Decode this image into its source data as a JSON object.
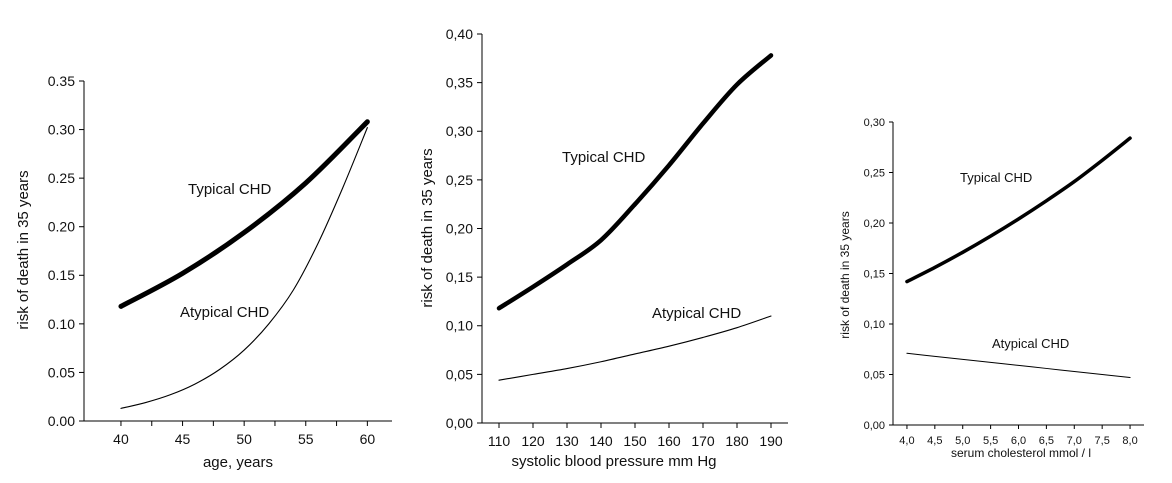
{
  "chart_data": [
    {
      "type": "line",
      "xlabel": "age, years",
      "ylabel": "risk of death in 35 years",
      "xlim": [
        37,
        62
      ],
      "ylim": [
        0,
        0.35
      ],
      "x_ticks": [
        "40",
        "45",
        "50",
        "55",
        "60"
      ],
      "y_ticks": [
        "0.00",
        "0.05",
        "0.10",
        "0.15",
        "0.20",
        "0.25",
        "0.30",
        "0.35"
      ],
      "series": [
        {
          "name": "Typical CHD",
          "x": [
            40,
            45,
            50,
            55,
            60
          ],
          "y": [
            0.118,
            0.152,
            0.194,
            0.245,
            0.308
          ]
        },
        {
          "name": "Atypical CHD",
          "x": [
            40,
            42,
            44,
            46,
            48,
            50,
            52,
            54,
            56,
            58,
            60
          ],
          "y": [
            0.013,
            0.019,
            0.027,
            0.038,
            0.053,
            0.073,
            0.1,
            0.135,
            0.183,
            0.24,
            0.302
          ]
        }
      ],
      "colors": {
        "typical": "#000000",
        "atypical": "#000000"
      }
    },
    {
      "type": "line",
      "xlabel": "systolic blood pressure mm Hg",
      "ylabel": "risk of death in 35 years",
      "xlim": [
        105,
        195
      ],
      "ylim": [
        0,
        0.4
      ],
      "x_ticks": [
        "110",
        "120",
        "130",
        "140",
        "150",
        "160",
        "170",
        "180",
        "190"
      ],
      "y_ticks": [
        "0,00",
        "0,05",
        "0,10",
        "0,15",
        "0,20",
        "0,25",
        "0,30",
        "0,35",
        "0,40"
      ],
      "series": [
        {
          "name": "Typical CHD",
          "x": [
            110,
            120,
            130,
            140,
            150,
            160,
            170,
            180,
            190
          ],
          "y": [
            0.118,
            0.14,
            0.163,
            0.188,
            0.225,
            0.265,
            0.308,
            0.348,
            0.378
          ]
        },
        {
          "name": "Atypical CHD",
          "x": [
            110,
            120,
            130,
            140,
            150,
            160,
            170,
            180,
            190
          ],
          "y": [
            0.044,
            0.05,
            0.056,
            0.063,
            0.071,
            0.079,
            0.088,
            0.098,
            0.11
          ]
        }
      ],
      "colors": {
        "typical": "#000000",
        "atypical": "#000000"
      }
    },
    {
      "type": "line",
      "xlabel": "serum cholesterol mmol / l",
      "ylabel": "risk of death in 35 years",
      "xlim": [
        3.75,
        8.25
      ],
      "ylim": [
        0,
        0.3
      ],
      "x_ticks": [
        "4,0",
        "4,5",
        "5,0",
        "5,5",
        "6,0",
        "6,5",
        "7,0",
        "7,5",
        "8,0"
      ],
      "y_ticks": [
        "0,00",
        "0,05",
        "0,10",
        "0,15",
        "0,20",
        "0,25",
        "0,30"
      ],
      "series": [
        {
          "name": "Typical CHD",
          "x": [
            4.0,
            4.5,
            5.0,
            5.5,
            6.0,
            6.5,
            7.0,
            7.5,
            8.0
          ],
          "y": [
            0.142,
            0.156,
            0.171,
            0.187,
            0.204,
            0.222,
            0.241,
            0.262,
            0.284
          ]
        },
        {
          "name": "Atypical CHD",
          "x": [
            4.0,
            4.5,
            5.0,
            5.5,
            6.0,
            6.5,
            7.0,
            7.5,
            8.0
          ],
          "y": [
            0.071,
            0.068,
            0.065,
            0.062,
            0.059,
            0.056,
            0.053,
            0.05,
            0.047
          ]
        }
      ],
      "colors": {
        "typical": "#000000",
        "atypical": "#000000"
      }
    }
  ]
}
